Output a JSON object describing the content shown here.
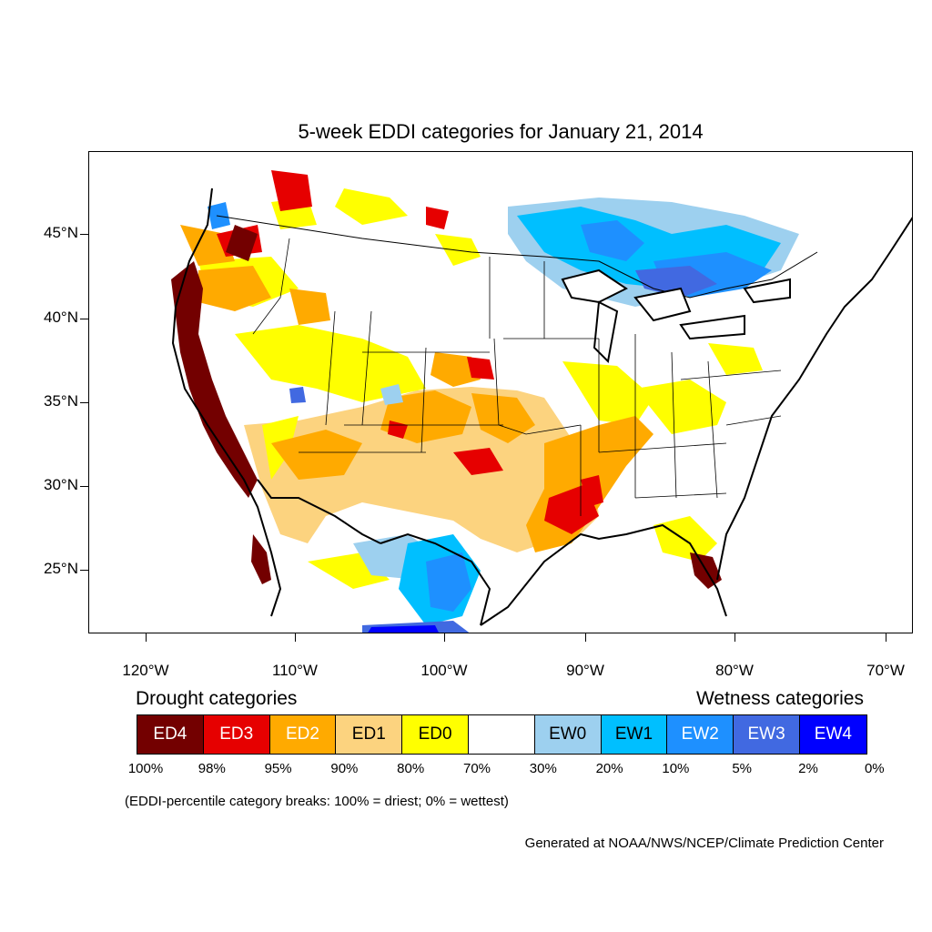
{
  "title": "5-week EDDI categories for January 21, 2014",
  "lat_labels": [
    "45°N",
    "40°N",
    "35°N",
    "30°N",
    "25°N"
  ],
  "lon_labels": [
    "120°W",
    "110°W",
    "100°W",
    "90°W",
    "80°W",
    "70°W"
  ],
  "legend": {
    "drought_heading": "Drought categories",
    "wetness_heading": "Wetness categories",
    "categories": [
      {
        "label": "ED4",
        "color": "#730000",
        "text_color": "#ffffff"
      },
      {
        "label": "ED3",
        "color": "#e60000",
        "text_color": "#ffffff"
      },
      {
        "label": "ED2",
        "color": "#ffaa00",
        "text_color": "#ffffff"
      },
      {
        "label": "ED1",
        "color": "#fcd37f",
        "text_color": "#000000"
      },
      {
        "label": "ED0",
        "color": "#ffff00",
        "text_color": "#000000"
      },
      {
        "label": "",
        "color": "#ffffff",
        "text_color": "#000000"
      },
      {
        "label": "EW0",
        "color": "#9dd0ef",
        "text_color": "#000000"
      },
      {
        "label": "EW1",
        "color": "#00bfff",
        "text_color": "#000000"
      },
      {
        "label": "EW2",
        "color": "#1e90ff",
        "text_color": "#ffffff"
      },
      {
        "label": "EW3",
        "color": "#4169e1",
        "text_color": "#ffffff"
      },
      {
        "label": "EW4",
        "color": "#0000ff",
        "text_color": "#ffffff"
      }
    ],
    "breaks": [
      "100%",
      "98%",
      "95%",
      "90%",
      "80%",
      "70%",
      "30%",
      "20%",
      "10%",
      "5%",
      "2%",
      "0%"
    ]
  },
  "note": "(EDDI-percentile category breaks: 100% = driest; 0% = wettest)",
  "credit": "Generated at NOAA/NWS/NCEP/Climate Prediction Center"
}
